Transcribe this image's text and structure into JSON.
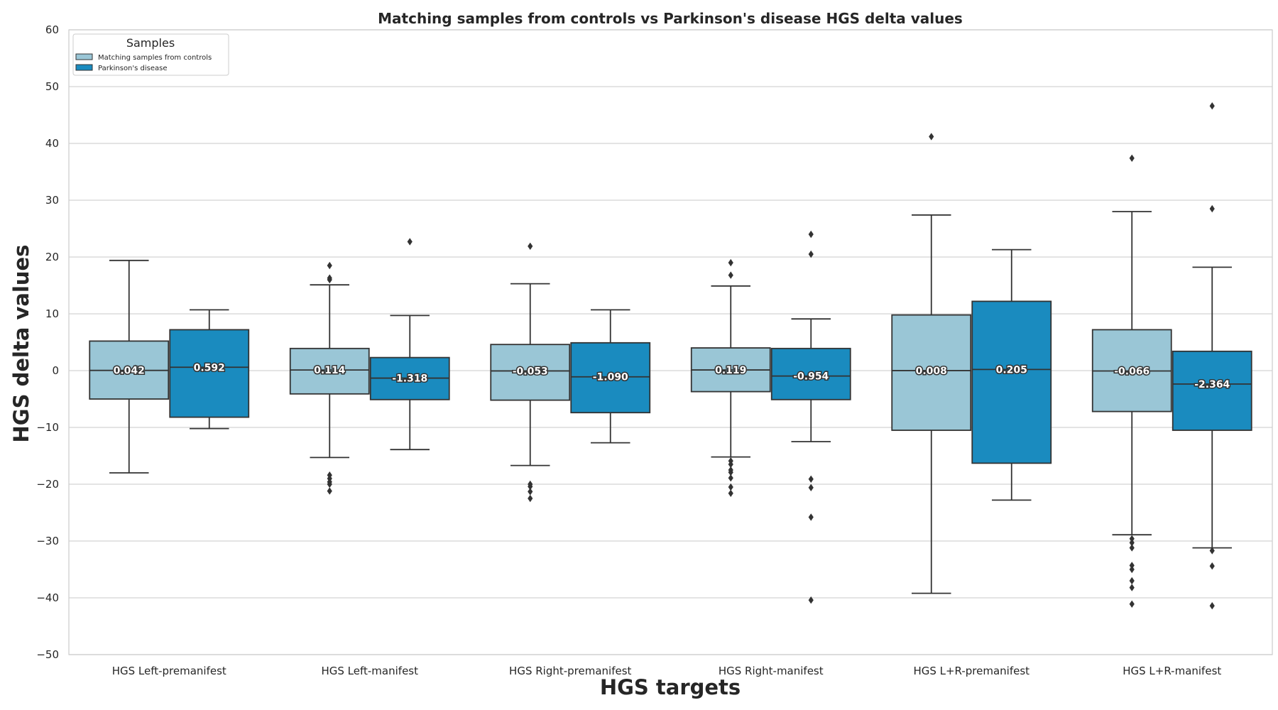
{
  "chart_data": {
    "type": "box",
    "title": "Matching samples from controls vs Parkinson's disease HGS delta values",
    "xlabel": "HGS targets",
    "ylabel": "HGS delta values",
    "ylim": [
      -50,
      60
    ],
    "yticks": [
      -50,
      -40,
      -30,
      -20,
      -10,
      0,
      10,
      20,
      30,
      40,
      50,
      60
    ],
    "ytick_labels": [
      "−50",
      "−40",
      "−30",
      "−20",
      "−10",
      "0",
      "10",
      "20",
      "30",
      "40",
      "50",
      "60"
    ],
    "grid": true,
    "legend": {
      "title": "Samples",
      "position": "top-left"
    },
    "categories": [
      "HGS Left-premanifest",
      "HGS Left-manifest",
      "HGS Right-premanifest",
      "HGS Right-manifest",
      "HGS L+R-premanifest",
      "HGS L+R-manifest"
    ],
    "series": [
      {
        "name": "Matching samples from controls",
        "color": "#9ac6d6",
        "boxes": [
          {
            "whislo": -18.0,
            "q1": -5.0,
            "med": 0.042,
            "q3": 5.2,
            "whishi": 19.4,
            "fliers": [],
            "label": "0.042"
          },
          {
            "whislo": -15.3,
            "q1": -4.1,
            "med": 0.114,
            "q3": 3.9,
            "whishi": 15.1,
            "fliers": [
              18.5,
              16.3,
              16.0,
              -18.4,
              -19.0,
              -19.6,
              -20.0,
              -21.2
            ],
            "label": "0.114"
          },
          {
            "whislo": -16.7,
            "q1": -5.2,
            "med": -0.053,
            "q3": 4.6,
            "whishi": 15.3,
            "fliers": [
              21.9,
              -20.0,
              -20.4,
              -21.3,
              -22.5
            ],
            "label": "-0.053"
          },
          {
            "whislo": -15.2,
            "q1": -3.7,
            "med": 0.119,
            "q3": 4.0,
            "whishi": 14.9,
            "fliers": [
              19.0,
              16.8,
              -15.9,
              -16.5,
              -17.5,
              -17.9,
              -18.9,
              -20.5,
              -21.6
            ],
            "label": "0.119"
          },
          {
            "whislo": -39.2,
            "q1": -10.5,
            "med": 0.008,
            "q3": 9.8,
            "whishi": 27.4,
            "fliers": [
              41.2
            ],
            "label": "0.008"
          },
          {
            "whislo": -28.9,
            "q1": -7.2,
            "med": -0.066,
            "q3": 7.2,
            "whishi": 28.0,
            "fliers": [
              37.4,
              -29.6,
              -30.3,
              -31.2,
              -34.3,
              -35.0,
              -37.0,
              -38.2,
              -41.1
            ],
            "label": "-0.066"
          }
        ]
      },
      {
        "name": "Parkinson's disease",
        "color": "#1a8bbf",
        "boxes": [
          {
            "whislo": -10.2,
            "q1": -8.2,
            "med": 0.592,
            "q3": 7.2,
            "whishi": 10.7,
            "fliers": [],
            "label": "0.592"
          },
          {
            "whislo": -13.9,
            "q1": -5.1,
            "med": -1.318,
            "q3": 2.3,
            "whishi": 9.7,
            "fliers": [
              22.7
            ],
            "label": "-1.318"
          },
          {
            "whislo": -12.7,
            "q1": -7.4,
            "med": -1.09,
            "q3": 4.9,
            "whishi": 10.7,
            "fliers": [],
            "label": "-1.090"
          },
          {
            "whislo": -12.5,
            "q1": -5.1,
            "med": -0.954,
            "q3": 3.9,
            "whishi": 9.1,
            "fliers": [
              24.0,
              20.5,
              -19.1,
              -20.6,
              -25.8,
              -40.4
            ],
            "label": "-0.954"
          },
          {
            "whislo": -22.8,
            "q1": -16.3,
            "med": 0.205,
            "q3": 12.2,
            "whishi": 21.3,
            "fliers": [],
            "label": "0.205"
          },
          {
            "whislo": -31.2,
            "q1": -10.5,
            "med": -2.364,
            "q3": 3.4,
            "whishi": 18.2,
            "fliers": [
              46.6,
              28.5,
              -31.7,
              -34.4,
              -41.4
            ],
            "label": "-2.364"
          }
        ]
      }
    ]
  }
}
